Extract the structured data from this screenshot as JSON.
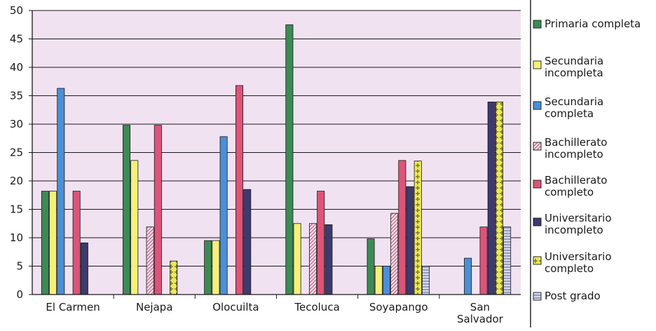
{
  "chart_data": {
    "type": "bar",
    "title": "",
    "xlabel": "",
    "ylabel": "",
    "ylim": [
      0,
      50
    ],
    "yticks": [
      0,
      5,
      10,
      15,
      20,
      25,
      30,
      35,
      40,
      45,
      50
    ],
    "grid": true,
    "legend_position": "right",
    "categories": [
      [
        "El Carmen"
      ],
      [
        "Nejapa"
      ],
      [
        "Olocuilta"
      ],
      [
        "Tecoluca"
      ],
      [
        "Soyapango"
      ],
      [
        "San",
        "Salvador"
      ]
    ],
    "series": [
      {
        "name": [
          "Primaria completa"
        ],
        "color": "#3d8a55",
        "pattern": "solid",
        "values": [
          18.2,
          29.8,
          9.5,
          47.5,
          9.8,
          0
        ]
      },
      {
        "name": [
          "Secundaria",
          "incompleta"
        ],
        "color": "#f4f07a",
        "pattern": "solid",
        "values": [
          18.2,
          23.6,
          9.5,
          12.5,
          5.0,
          0
        ]
      },
      {
        "name": [
          "Secundaria",
          "completa"
        ],
        "color": "#4b8fd6",
        "pattern": "solid",
        "values": [
          36.3,
          0,
          27.8,
          0,
          5.0,
          6.4
        ]
      },
      {
        "name": [
          "Bachillerato",
          "incompleto"
        ],
        "color": "#f6dde8",
        "pattern": "diag",
        "values": [
          0,
          11.9,
          0,
          12.5,
          14.3,
          0
        ]
      },
      {
        "name": [
          "Bachillerato",
          "completo"
        ],
        "color": "#dd5478",
        "pattern": "solid",
        "values": [
          18.2,
          29.8,
          36.8,
          18.2,
          23.6,
          11.9
        ]
      },
      {
        "name": [
          "Universitario",
          "incompleto"
        ],
        "color": "#3d3a6e",
        "pattern": "solid",
        "values": [
          9.1,
          0,
          18.5,
          12.3,
          19.0,
          33.9
        ]
      },
      {
        "name": [
          "Universitario",
          "completo"
        ],
        "color": "#ece85a",
        "pattern": "cross",
        "values": [
          0,
          5.9,
          0,
          0,
          23.5,
          33.9
        ]
      },
      {
        "name": [
          "Post grado"
        ],
        "color": "#c5c9e8",
        "pattern": "hstripe",
        "values": [
          0,
          0,
          0,
          0,
          5.0,
          11.9
        ]
      }
    ]
  },
  "colors": {
    "plot_background": "#f1e2f2",
    "gridline": "#1a1a1a",
    "axis": "#1a1a1a"
  }
}
